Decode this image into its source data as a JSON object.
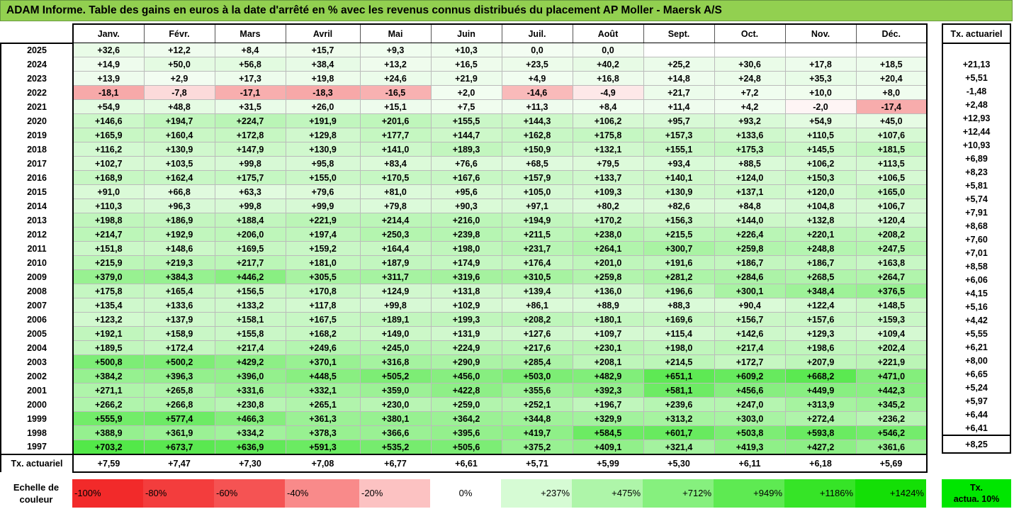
{
  "title": "ADAM Informe. Table des gains en euros à la date d'arrêté en % avec les revenus connus distribués du placement AP Moller - Maersk A/S",
  "months": [
    "Janv.",
    "Févr.",
    "Mars",
    "Avril",
    "Mai",
    "Juin",
    "Juil.",
    "Août",
    "Sept.",
    "Oct.",
    "Nov.",
    "Déc."
  ],
  "actuarial_header": "Tx. actuariel",
  "rows": [
    {
      "year": "2025",
      "values": [
        "+32,6",
        "+12,2",
        "+8,4",
        "+15,7",
        "+9,3",
        "+10,3",
        "0,0",
        "0,0",
        "",
        "",
        "",
        ""
      ],
      "actuarial": ""
    },
    {
      "year": "2024",
      "values": [
        "+14,9",
        "+50,0",
        "+56,8",
        "+38,4",
        "+13,2",
        "+16,5",
        "+23,5",
        "+40,2",
        "+25,2",
        "+30,6",
        "+17,8",
        "+18,5"
      ],
      "actuarial": "+21,13"
    },
    {
      "year": "2023",
      "values": [
        "+13,9",
        "+2,9",
        "+17,3",
        "+19,8",
        "+24,6",
        "+21,9",
        "+4,9",
        "+16,8",
        "+14,8",
        "+24,8",
        "+35,3",
        "+20,4"
      ],
      "actuarial": "+5,51"
    },
    {
      "year": "2022",
      "values": [
        "-18,1",
        "-7,8",
        "-17,1",
        "-18,3",
        "-16,5",
        "+2,0",
        "-14,6",
        "-4,9",
        "+21,7",
        "+7,2",
        "+10,0",
        "+8,0"
      ],
      "actuarial": "-1,48"
    },
    {
      "year": "2021",
      "values": [
        "+54,9",
        "+48,8",
        "+31,5",
        "+26,0",
        "+15,1",
        "+7,5",
        "+11,3",
        "+8,4",
        "+11,4",
        "+4,2",
        "-2,0",
        "-17,4"
      ],
      "actuarial": "+2,48"
    },
    {
      "year": "2020",
      "values": [
        "+146,6",
        "+194,7",
        "+224,7",
        "+191,9",
        "+201,6",
        "+155,5",
        "+144,3",
        "+106,2",
        "+95,7",
        "+93,2",
        "+54,9",
        "+45,0"
      ],
      "actuarial": "+12,93"
    },
    {
      "year": "2019",
      "values": [
        "+165,9",
        "+160,4",
        "+172,8",
        "+129,8",
        "+177,7",
        "+144,7",
        "+162,8",
        "+175,8",
        "+157,3",
        "+133,6",
        "+110,5",
        "+107,6"
      ],
      "actuarial": "+12,44"
    },
    {
      "year": "2018",
      "values": [
        "+116,2",
        "+130,9",
        "+147,9",
        "+130,9",
        "+141,0",
        "+189,3",
        "+150,9",
        "+132,1",
        "+155,1",
        "+175,3",
        "+145,5",
        "+181,5"
      ],
      "actuarial": "+10,93"
    },
    {
      "year": "2017",
      "values": [
        "+102,7",
        "+103,5",
        "+99,8",
        "+95,8",
        "+83,4",
        "+76,6",
        "+68,5",
        "+79,5",
        "+93,4",
        "+88,5",
        "+106,2",
        "+113,5"
      ],
      "actuarial": "+6,89"
    },
    {
      "year": "2016",
      "values": [
        "+168,9",
        "+162,4",
        "+175,7",
        "+155,0",
        "+170,5",
        "+167,6",
        "+157,9",
        "+133,7",
        "+140,1",
        "+124,0",
        "+150,3",
        "+106,5"
      ],
      "actuarial": "+8,23"
    },
    {
      "year": "2015",
      "values": [
        "+91,0",
        "+66,8",
        "+63,3",
        "+79,6",
        "+81,0",
        "+95,6",
        "+105,0",
        "+109,3",
        "+130,9",
        "+137,1",
        "+120,0",
        "+165,0"
      ],
      "actuarial": "+5,81"
    },
    {
      "year": "2014",
      "values": [
        "+110,3",
        "+96,3",
        "+99,8",
        "+99,9",
        "+79,8",
        "+90,3",
        "+97,1",
        "+80,2",
        "+82,6",
        "+84,8",
        "+104,8",
        "+106,7"
      ],
      "actuarial": "+5,74"
    },
    {
      "year": "2013",
      "values": [
        "+198,8",
        "+186,9",
        "+188,4",
        "+221,9",
        "+214,4",
        "+216,0",
        "+194,9",
        "+170,2",
        "+156,3",
        "+144,0",
        "+132,8",
        "+120,4"
      ],
      "actuarial": "+7,91"
    },
    {
      "year": "2012",
      "values": [
        "+214,7",
        "+192,9",
        "+206,0",
        "+197,4",
        "+250,3",
        "+239,8",
        "+211,5",
        "+238,0",
        "+215,5",
        "+226,4",
        "+220,1",
        "+208,2"
      ],
      "actuarial": "+8,68"
    },
    {
      "year": "2011",
      "values": [
        "+151,8",
        "+148,6",
        "+169,5",
        "+159,2",
        "+164,4",
        "+198,0",
        "+231,7",
        "+264,1",
        "+300,7",
        "+259,8",
        "+248,8",
        "+247,5"
      ],
      "actuarial": "+7,60"
    },
    {
      "year": "2010",
      "values": [
        "+215,9",
        "+219,3",
        "+217,7",
        "+181,0",
        "+187,9",
        "+174,9",
        "+176,4",
        "+201,0",
        "+191,6",
        "+186,7",
        "+186,7",
        "+163,8"
      ],
      "actuarial": "+7,01"
    },
    {
      "year": "2009",
      "values": [
        "+379,0",
        "+384,3",
        "+446,2",
        "+305,5",
        "+311,7",
        "+319,6",
        "+310,5",
        "+259,8",
        "+281,2",
        "+284,6",
        "+268,5",
        "+264,7"
      ],
      "actuarial": "+8,58"
    },
    {
      "year": "2008",
      "values": [
        "+175,8",
        "+165,4",
        "+156,5",
        "+170,8",
        "+124,9",
        "+131,8",
        "+139,4",
        "+136,0",
        "+196,6",
        "+300,1",
        "+348,4",
        "+376,5"
      ],
      "actuarial": "+6,06"
    },
    {
      "year": "2007",
      "values": [
        "+135,4",
        "+133,6",
        "+133,2",
        "+117,8",
        "+99,8",
        "+102,9",
        "+86,1",
        "+88,9",
        "+88,3",
        "+90,4",
        "+122,4",
        "+148,5"
      ],
      "actuarial": "+4,15"
    },
    {
      "year": "2006",
      "values": [
        "+123,2",
        "+137,9",
        "+158,1",
        "+167,5",
        "+189,1",
        "+199,3",
        "+208,2",
        "+180,1",
        "+169,6",
        "+156,7",
        "+157,6",
        "+159,3"
      ],
      "actuarial": "+5,16"
    },
    {
      "year": "2005",
      "values": [
        "+192,1",
        "+158,9",
        "+155,8",
        "+168,2",
        "+149,0",
        "+131,9",
        "+127,6",
        "+109,7",
        "+115,4",
        "+142,6",
        "+129,3",
        "+109,4"
      ],
      "actuarial": "+4,42"
    },
    {
      "year": "2004",
      "values": [
        "+189,5",
        "+172,4",
        "+217,4",
        "+249,6",
        "+245,0",
        "+224,9",
        "+217,6",
        "+230,1",
        "+198,0",
        "+217,4",
        "+198,6",
        "+202,4"
      ],
      "actuarial": "+5,55"
    },
    {
      "year": "2003",
      "values": [
        "+500,8",
        "+500,2",
        "+429,2",
        "+370,1",
        "+316,8",
        "+290,9",
        "+285,4",
        "+208,1",
        "+214,5",
        "+172,7",
        "+207,9",
        "+221,9"
      ],
      "actuarial": "+6,21"
    },
    {
      "year": "2002",
      "values": [
        "+384,2",
        "+396,3",
        "+396,0",
        "+448,5",
        "+505,2",
        "+456,0",
        "+503,0",
        "+482,9",
        "+651,1",
        "+609,2",
        "+668,2",
        "+471,0"
      ],
      "actuarial": "+8,00"
    },
    {
      "year": "2001",
      "values": [
        "+271,1",
        "+265,8",
        "+331,6",
        "+332,1",
        "+359,0",
        "+422,8",
        "+355,6",
        "+392,3",
        "+581,1",
        "+456,6",
        "+449,9",
        "+442,3"
      ],
      "actuarial": "+6,65"
    },
    {
      "year": "2000",
      "values": [
        "+266,2",
        "+266,8",
        "+230,8",
        "+265,1",
        "+230,0",
        "+259,0",
        "+252,1",
        "+196,7",
        "+239,6",
        "+247,0",
        "+313,9",
        "+345,2"
      ],
      "actuarial": "+5,24"
    },
    {
      "year": "1999",
      "values": [
        "+555,9",
        "+577,4",
        "+466,3",
        "+361,3",
        "+380,1",
        "+364,2",
        "+344,8",
        "+329,9",
        "+313,2",
        "+303,0",
        "+272,4",
        "+236,2"
      ],
      "actuarial": "+5,97"
    },
    {
      "year": "1998",
      "values": [
        "+388,9",
        "+361,9",
        "+334,2",
        "+378,3",
        "+366,6",
        "+395,6",
        "+419,7",
        "+584,5",
        "+601,7",
        "+503,8",
        "+593,8",
        "+546,2"
      ],
      "actuarial": "+6,44"
    },
    {
      "year": "1997",
      "values": [
        "+703,2",
        "+673,7",
        "+636,9",
        "+591,3",
        "+535,2",
        "+505,6",
        "+375,2",
        "+409,1",
        "+321,4",
        "+419,3",
        "+427,2",
        "+361,6"
      ],
      "actuarial": "+6,41"
    }
  ],
  "footer": {
    "label": "Tx. actuariel",
    "values": [
      "+7,59",
      "+7,47",
      "+7,30",
      "+7,08",
      "+6,77",
      "+6,61",
      "+5,71",
      "+5,99",
      "+5,30",
      "+6,11",
      "+6,18",
      "+5,69"
    ],
    "overall": "+8,25"
  },
  "color_scale": {
    "label_line1": "Echelle de",
    "label_line2": "couleur",
    "swatches": [
      {
        "label": "-100%",
        "color": "#f22a2a",
        "align": "left"
      },
      {
        "label": "-80%",
        "color": "#f33d3d",
        "align": "left"
      },
      {
        "label": "-60%",
        "color": "#f55353",
        "align": "left"
      },
      {
        "label": "-40%",
        "color": "#f98a8a",
        "align": "left"
      },
      {
        "label": "-20%",
        "color": "#fcc2c2",
        "align": "left"
      },
      {
        "label": "0%",
        "color": "#ffffff",
        "align": "center"
      },
      {
        "label": "+237%",
        "color": "#d6fbd4",
        "align": "right"
      },
      {
        "label": "+475%",
        "color": "#aef5a9",
        "align": "right"
      },
      {
        "label": "+712%",
        "color": "#86f07e",
        "align": "right"
      },
      {
        "label": "+949%",
        "color": "#5eea52",
        "align": "right"
      },
      {
        "label": "+1186%",
        "color": "#36e427",
        "align": "right"
      },
      {
        "label": "+1424%",
        "color": "#14df06",
        "align": "right"
      }
    ]
  },
  "legend_10": {
    "line1": "Tx.",
    "line2": "actua. 10%",
    "color": "#00e600"
  },
  "colors": {
    "banner": "#92d050",
    "negative": "#f22a2a",
    "positive": "#14df06"
  }
}
